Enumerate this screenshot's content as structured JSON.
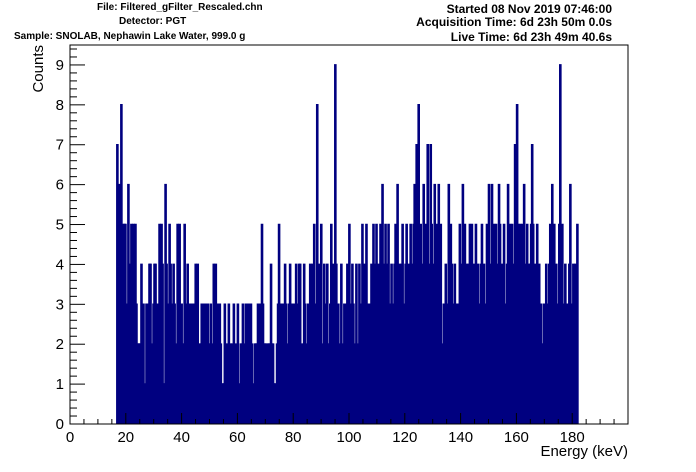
{
  "header": {
    "file": "File: Filtered_gFilter_Rescaled.chn",
    "detector": "Detector: PGT",
    "sample": "Sample: SNOLAB, Nephawin Lake Water, 999.0 g",
    "started": "Started 08 Nov 2019 07:46:00",
    "acquisition": "Acquisition Time: 6d 23h 50m 0.0s",
    "live": "Live Time: 6d 23h 49m 40.6s"
  },
  "chart_data": {
    "type": "histogram",
    "xlabel": "Energy (keV)",
    "ylabel": "Counts",
    "xlim": [
      0,
      200
    ],
    "ylim": [
      0,
      9.5
    ],
    "x_ticks": [
      0,
      20,
      40,
      60,
      80,
      100,
      120,
      140,
      160,
      180
    ],
    "y_ticks": [
      0,
      1,
      2,
      3,
      4,
      5,
      6,
      7,
      8,
      9
    ],
    "bin_start": 16.8,
    "bin_width": 0.36,
    "values": [
      7,
      5,
      6,
      4,
      8,
      5,
      2,
      5,
      5,
      3,
      2,
      6,
      4,
      2,
      5,
      3,
      5,
      4,
      5,
      3,
      2,
      2,
      2,
      2,
      4,
      2,
      3,
      1,
      0,
      3,
      3,
      3,
      4,
      4,
      1,
      2,
      3,
      4,
      4,
      3,
      3,
      2,
      5,
      2,
      5,
      4,
      1,
      1,
      6,
      4,
      3,
      1,
      5,
      4,
      2,
      3,
      4,
      3,
      2,
      1,
      5,
      4,
      5,
      1,
      3,
      2,
      2,
      5,
      3,
      2,
      4,
      2,
      3,
      2,
      3,
      1,
      3,
      3,
      4,
      2,
      4,
      1,
      2,
      2,
      3,
      2,
      3,
      2,
      3,
      0,
      3,
      2,
      2,
      3,
      2,
      1,
      4,
      2,
      4,
      2,
      3,
      3,
      3,
      2,
      0,
      1,
      1,
      3,
      2,
      0,
      2,
      3,
      0,
      2,
      2,
      1,
      3,
      1,
      2,
      1,
      3,
      1,
      0,
      2,
      2,
      3,
      1,
      2,
      3,
      2,
      3,
      1,
      3,
      3,
      2,
      1,
      0,
      2,
      2,
      2,
      3,
      1,
      3,
      1,
      5,
      3,
      2,
      2,
      2,
      1,
      2,
      2,
      2,
      4,
      2,
      2,
      1,
      1,
      0,
      2,
      3,
      5,
      2,
      3,
      2,
      3,
      2,
      4,
      3,
      2,
      0,
      3,
      4,
      2,
      3,
      2,
      3,
      1,
      4,
      3,
      2,
      4,
      4,
      2,
      1,
      2,
      4,
      3,
      2,
      1,
      3,
      3,
      4,
      3,
      4,
      2,
      5,
      3,
      2,
      8,
      3,
      4,
      2,
      5,
      2,
      1,
      4,
      3,
      2,
      4,
      2,
      2,
      3,
      5,
      2,
      4,
      3,
      9,
      4,
      2,
      3,
      2,
      1,
      4,
      2,
      0,
      3,
      1,
      3,
      4,
      2,
      5,
      3,
      2,
      4,
      3,
      1,
      2,
      4,
      2,
      0,
      4,
      3,
      2,
      5,
      2,
      4,
      3,
      5,
      2,
      3,
      1,
      3,
      4,
      3,
      5,
      3,
      4,
      5,
      2,
      4,
      1,
      5,
      3,
      6,
      3,
      4,
      5,
      2,
      4,
      5,
      3,
      2,
      4,
      3,
      2,
      4,
      5,
      3,
      6,
      3,
      4,
      2,
      4,
      5,
      3,
      1,
      4,
      5,
      3,
      4,
      3,
      5,
      4,
      2,
      5,
      6,
      4,
      7,
      3,
      8,
      4,
      5,
      3,
      4,
      6,
      2,
      5,
      4,
      7,
      3,
      4,
      7,
      5,
      2,
      4,
      6,
      3,
      5,
      4,
      6,
      3,
      5,
      2,
      1,
      3,
      2,
      4,
      1,
      3,
      6,
      2,
      5,
      4,
      2,
      3,
      4,
      3,
      1,
      3,
      3,
      5,
      3,
      4,
      6,
      3,
      5,
      3,
      4,
      3,
      4,
      5,
      3,
      5,
      2,
      4,
      3,
      5,
      1,
      4,
      2,
      3,
      4,
      5,
      3,
      4,
      3,
      2,
      5,
      3,
      6,
      4,
      3,
      6,
      4,
      5,
      2,
      5,
      3,
      4,
      6,
      5,
      3,
      4,
      3,
      5,
      3,
      2,
      4,
      6,
      2,
      5,
      3,
      5,
      4,
      3,
      7,
      4,
      8,
      5,
      3,
      5,
      4,
      5,
      4,
      6,
      3,
      4,
      5,
      3,
      4,
      4,
      5,
      7,
      5,
      2,
      4,
      3,
      5,
      2,
      4,
      1,
      3,
      2,
      2,
      3,
      2,
      4,
      3,
      2,
      4,
      5,
      3,
      6,
      3,
      5,
      3,
      4,
      3,
      2,
      5,
      9,
      3,
      5,
      2,
      3,
      4,
      1,
      3,
      2,
      4,
      6,
      3,
      2,
      4,
      2,
      4,
      3,
      5
    ]
  }
}
